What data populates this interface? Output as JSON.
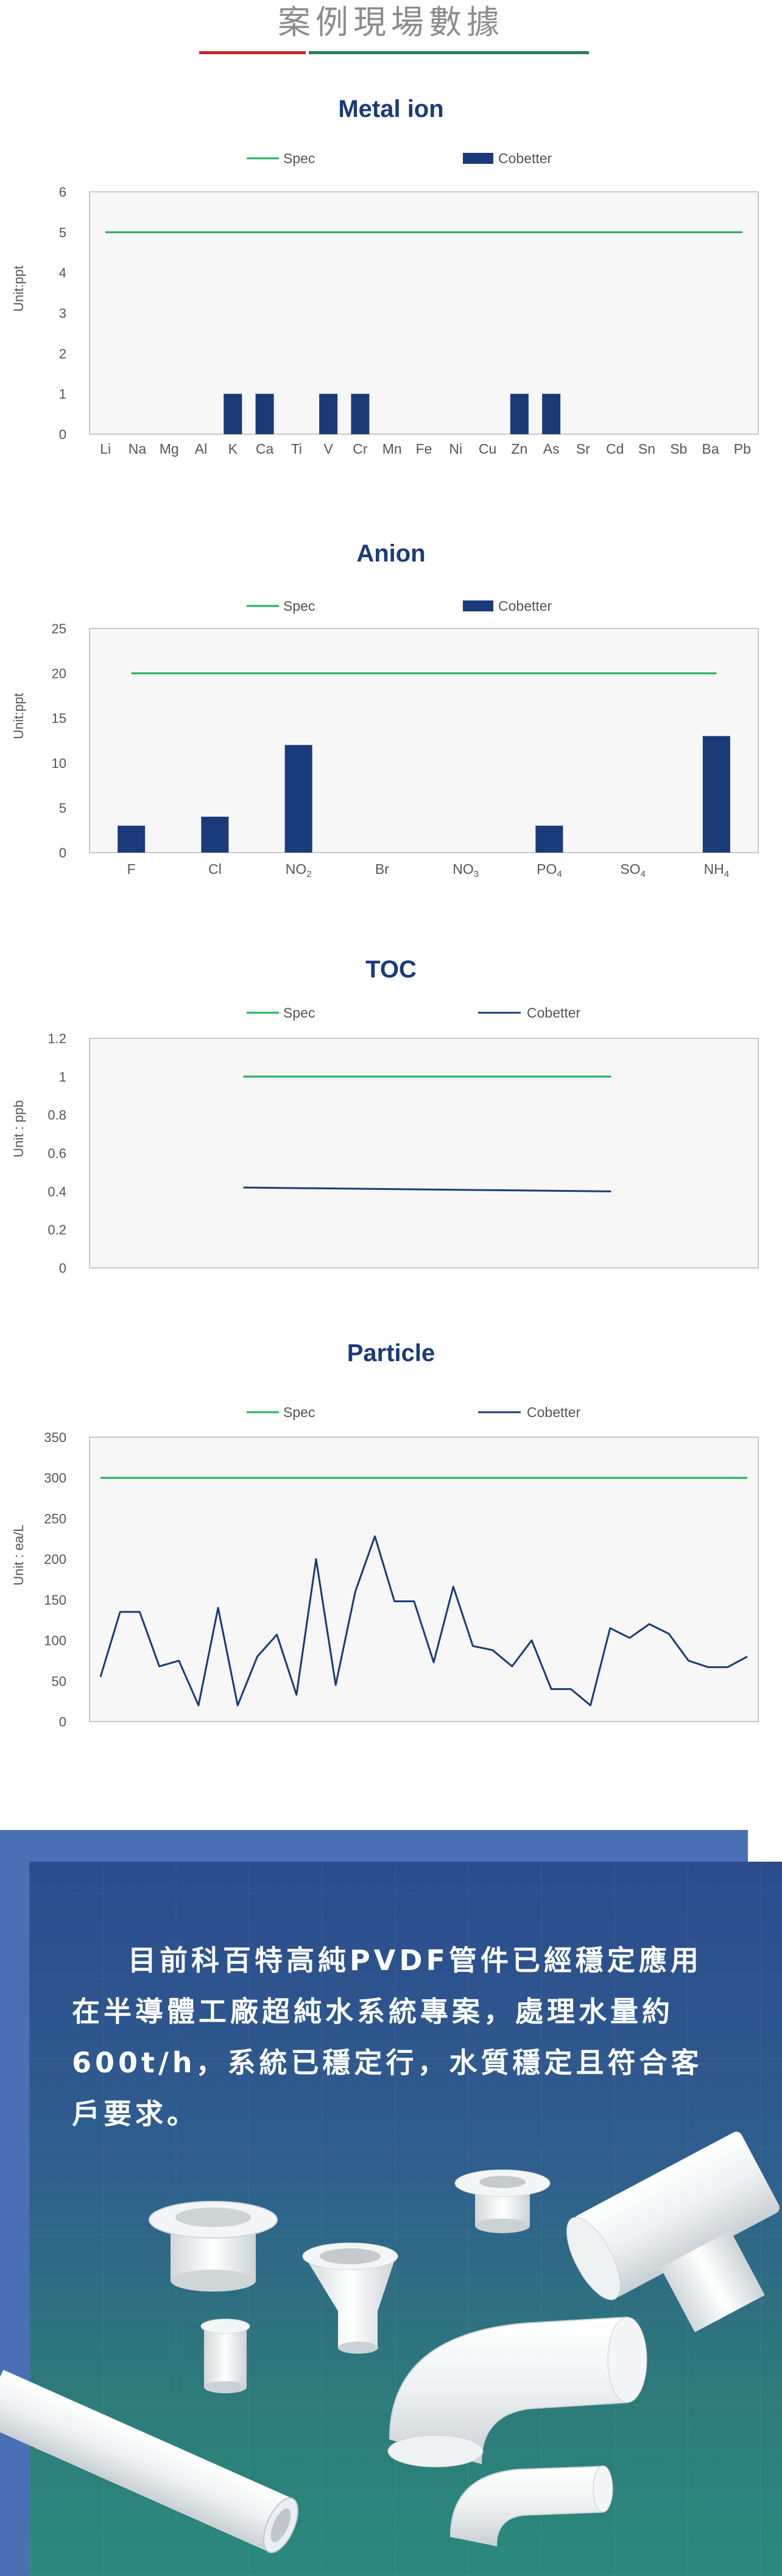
{
  "header": {
    "title": "案例現場數據"
  },
  "colors": {
    "spec": "#22b05a",
    "cobetter": "#1a3a7a",
    "title": "#1a3a7a",
    "plot_bg": "#f6f7f6",
    "axis": "#c8c8c8",
    "text": "#555555"
  },
  "chart_data": [
    {
      "type": "bar",
      "title": "Metal ion",
      "ylabel": "Unit:ppt",
      "ylim": [
        0,
        6
      ],
      "yticks": [
        0,
        1,
        2,
        3,
        4,
        5,
        6
      ],
      "categories": [
        "Li",
        "Na",
        "Mg",
        "Al",
        "K",
        "Ca",
        "Ti",
        "V",
        "Cr",
        "Mn",
        "Fe",
        "Ni",
        "Cu",
        "Zn",
        "As",
        "Sr",
        "Cd",
        "Sn",
        "Sb",
        "Ba",
        "Pb"
      ],
      "series": [
        {
          "name": "Spec",
          "kind": "line",
          "values": [
            5,
            5,
            5,
            5,
            5,
            5,
            5,
            5,
            5,
            5,
            5,
            5,
            5,
            5,
            5,
            5,
            5,
            5,
            5,
            5,
            5
          ]
        },
        {
          "name": "Cobetter",
          "kind": "bar",
          "values": [
            0,
            0,
            0,
            0,
            1,
            1,
            0,
            1,
            1,
            0,
            0,
            0,
            0,
            1,
            1,
            0,
            0,
            0,
            0,
            0,
            0
          ]
        }
      ],
      "legend": "top-center",
      "grid": false
    },
    {
      "type": "bar",
      "title": "Anion",
      "ylabel": "Unit:ppt",
      "ylim": [
        0,
        25
      ],
      "yticks": [
        0,
        5,
        10,
        15,
        20,
        25
      ],
      "categories": [
        "F",
        "Cl",
        "NO2",
        "Br",
        "NO3",
        "PO4",
        "SO4",
        "NH4"
      ],
      "series": [
        {
          "name": "Spec",
          "kind": "line",
          "values": [
            20,
            20,
            20,
            20,
            20,
            20,
            20,
            20
          ]
        },
        {
          "name": "Cobetter",
          "kind": "bar",
          "values": [
            3,
            4,
            12,
            0,
            0,
            3,
            0,
            13
          ]
        }
      ],
      "legend": "top-center",
      "grid": false
    },
    {
      "type": "line",
      "title": "TOC",
      "ylabel": "Unit : ppb",
      "ylim": [
        0,
        1.2
      ],
      "yticks": [
        "0",
        "0.2",
        "0.4",
        "0.6",
        "0.8",
        "1",
        "1.2"
      ],
      "x": [
        1,
        2
      ],
      "series": [
        {
          "name": "Spec",
          "values": [
            1,
            1
          ]
        },
        {
          "name": "Cobetter",
          "values": [
            0.42,
            0.4
          ]
        }
      ],
      "legend": "top-center",
      "grid": false
    },
    {
      "type": "line",
      "title": "Particle",
      "ylabel": "Unit : ea/L",
      "ylim": [
        0,
        350
      ],
      "yticks": [
        0,
        50,
        100,
        150,
        200,
        250,
        300,
        350
      ],
      "series": [
        {
          "name": "Spec",
          "values": [
            300,
            300,
            300,
            300,
            300,
            300,
            300,
            300,
            300,
            300,
            300,
            300,
            300,
            300,
            300,
            300,
            300,
            300,
            300,
            300,
            300,
            300,
            300,
            300,
            300,
            300,
            300,
            300,
            300,
            300,
            300,
            300,
            300,
            300
          ]
        },
        {
          "name": "Cobetter",
          "values": [
            55,
            135,
            135,
            68,
            75,
            20,
            140,
            20,
            80,
            107,
            33,
            200,
            45,
            160,
            228,
            148,
            148,
            73,
            166,
            93,
            88,
            68,
            100,
            40,
            40,
            20,
            115,
            103,
            120,
            108,
            75,
            67,
            67,
            80
          ]
        }
      ],
      "legend": "top-center",
      "grid": false
    }
  ],
  "banner": {
    "text": "目前科百特高純PVDF管件已經穩定應用在半導體工廠超純水系統專案，處理水量約600t/h，系統已穩定行，水質穩定且符合客戶要求。"
  }
}
